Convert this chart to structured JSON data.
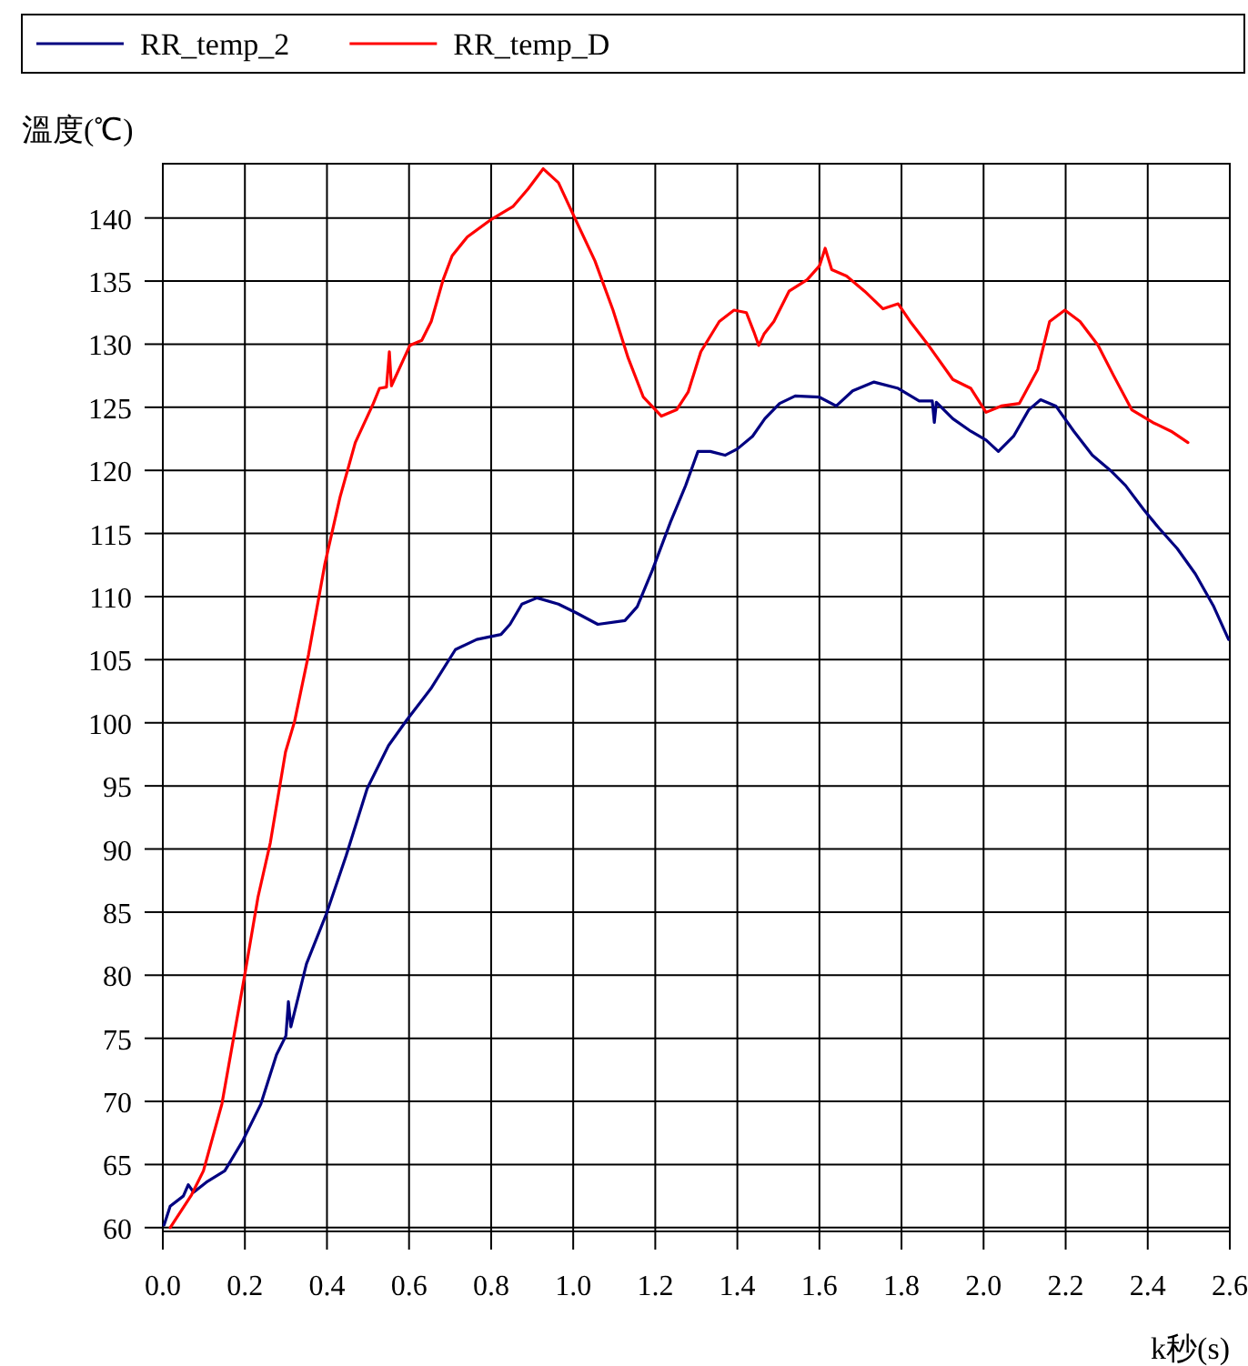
{
  "chart_data": {
    "type": "line",
    "ylabel": "溫度(℃)",
    "xlabel": "k秒(s)",
    "xlim": [
      0,
      2.6
    ],
    "ylim": [
      59.7,
      144.3
    ],
    "xticks": [
      {
        "value": 0,
        "label": "0.0"
      },
      0.2,
      0.4,
      0.6,
      0.8,
      {
        "value": 1,
        "label": "1.0"
      },
      1.2,
      1.4,
      1.6,
      1.8,
      {
        "value": 2,
        "label": "2.0"
      },
      2.2,
      2.4,
      2.6
    ],
    "yticks": [
      60,
      65,
      70,
      75,
      80,
      85,
      90,
      95,
      100,
      105,
      110,
      115,
      120,
      125,
      130,
      135,
      140
    ],
    "grid": true,
    "legend": "top",
    "line_style": "solid",
    "series": [
      {
        "name": "RR_temp_2",
        "color": "#000080",
        "x": [
          0.003,
          0.018,
          0.05,
          0.062,
          0.075,
          0.106,
          0.151,
          0.195,
          0.239,
          0.277,
          0.3,
          0.306,
          0.312,
          0.35,
          0.399,
          0.447,
          0.498,
          0.55,
          0.594,
          0.653,
          0.713,
          0.765,
          0.824,
          0.846,
          0.875,
          0.912,
          0.964,
          1.008,
          1.06,
          1.126,
          1.156,
          1.193,
          1.237,
          1.274,
          1.304,
          1.334,
          1.37,
          1.4,
          1.437,
          1.467,
          1.503,
          1.541,
          1.6,
          1.641,
          1.681,
          1.733,
          1.792,
          1.843,
          1.875,
          1.88,
          1.885,
          1.925,
          1.969,
          2.006,
          2.036,
          2.073,
          2.11,
          2.139,
          2.176,
          2.22,
          2.265,
          2.309,
          2.346,
          2.39,
          2.428,
          2.472,
          2.516,
          2.561,
          2.597
        ],
        "values": [
          60.2,
          61.7,
          62.5,
          63.4,
          62.8,
          63.6,
          64.5,
          66.9,
          69.8,
          73.7,
          75.2,
          77.9,
          75.9,
          80.9,
          84.9,
          89.5,
          94.8,
          98.2,
          100.2,
          102.7,
          105.8,
          106.6,
          107.0,
          107.8,
          109.4,
          109.9,
          109.4,
          108.7,
          107.8,
          108.1,
          109.2,
          112.1,
          115.9,
          118.8,
          121.5,
          121.5,
          121.2,
          121.7,
          122.7,
          124.1,
          125.3,
          125.9,
          125.8,
          125.1,
          126.3,
          127.0,
          126.5,
          125.5,
          125.5,
          123.8,
          125.4,
          124.1,
          123.1,
          122.4,
          121.5,
          122.7,
          124.8,
          125.6,
          125.1,
          123.1,
          121.2,
          120.0,
          118.8,
          116.9,
          115.4,
          113.8,
          111.8,
          109.2,
          106.6
        ]
      },
      {
        "name": "RR_temp_D",
        "color": "#ff0000",
        "x": [
          0.018,
          0.07,
          0.099,
          0.144,
          0.2,
          0.232,
          0.262,
          0.299,
          0.321,
          0.355,
          0.395,
          0.432,
          0.469,
          0.513,
          0.528,
          0.545,
          0.552,
          0.557,
          0.602,
          0.631,
          0.654,
          0.683,
          0.705,
          0.742,
          0.801,
          0.853,
          0.89,
          0.927,
          0.964,
          1.001,
          1.053,
          1.097,
          1.134,
          1.171,
          1.215,
          1.252,
          1.28,
          1.311,
          1.356,
          1.392,
          1.422,
          1.44,
          1.452,
          1.465,
          1.489,
          1.526,
          1.57,
          1.6,
          1.614,
          1.63,
          1.666,
          1.71,
          1.755,
          1.792,
          1.821,
          1.866,
          1.925,
          1.969,
          2.006,
          2.043,
          2.087,
          2.132,
          2.161,
          2.198,
          2.235,
          2.279,
          2.317,
          2.361,
          2.412,
          2.457,
          2.498
        ],
        "values": [
          60.0,
          62.6,
          64.5,
          69.8,
          80.1,
          86.2,
          90.5,
          97.7,
          100.1,
          105.4,
          112.6,
          117.9,
          122.2,
          125.3,
          126.5,
          126.6,
          129.4,
          126.7,
          129.9,
          130.3,
          131.8,
          135.1,
          137.0,
          138.5,
          139.9,
          140.9,
          142.3,
          143.9,
          142.8,
          140.2,
          136.6,
          132.7,
          128.9,
          125.8,
          124.3,
          124.8,
          126.2,
          129.4,
          131.8,
          132.7,
          132.5,
          131.0,
          129.9,
          130.8,
          131.8,
          134.2,
          135.1,
          136.2,
          137.6,
          135.9,
          135.4,
          134.2,
          132.8,
          133.2,
          131.8,
          129.9,
          127.2,
          126.5,
          124.6,
          125.1,
          125.3,
          128.0,
          131.8,
          132.7,
          131.8,
          129.9,
          127.5,
          124.8,
          123.8,
          123.1,
          122.2
        ]
      }
    ]
  }
}
